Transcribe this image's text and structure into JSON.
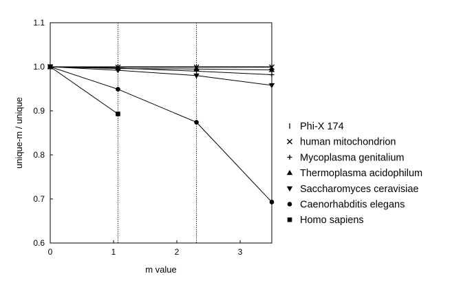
{
  "chart_data": {
    "type": "line",
    "title": "",
    "xlabel": "m value",
    "ylabel": "unique-m / unique",
    "xlim": [
      0,
      3.5
    ],
    "ylim": [
      0.6,
      1.1
    ],
    "x_ticks": [
      0,
      1,
      2,
      3
    ],
    "y_ticks": [
      0.6,
      0.7,
      0.8,
      0.9,
      1.0,
      1.1
    ],
    "x_tick_labels": [
      "0",
      "1",
      "2",
      "3"
    ],
    "y_tick_labels": [
      "0.6",
      "0.7",
      "0.8",
      "0.9",
      "1.0",
      "1.1"
    ],
    "vertical_reference_lines": [
      1.07,
      2.31
    ],
    "grid": false,
    "legend_position": "right",
    "series": [
      {
        "name": "Phi-X 174",
        "marker": "I",
        "x": [
          0,
          1.07,
          2.31,
          3.5
        ],
        "y": [
          1.0,
          1.0,
          1.0,
          1.0
        ]
      },
      {
        "name": "human mitochondrion",
        "marker": "X",
        "x": [
          0,
          1.07,
          2.31,
          3.5
        ],
        "y": [
          1.0,
          0.999,
          0.999,
          0.999
        ]
      },
      {
        "name": "Mycoplasma genitalium",
        "marker": "+",
        "x": [
          0,
          1.07,
          2.31,
          3.5
        ],
        "y": [
          1.0,
          0.997,
          0.99,
          0.982
        ]
      },
      {
        "name": "Thermoplasma acidophilum",
        "marker": "triangle-up",
        "x": [
          0,
          1.07,
          2.31,
          3.5
        ],
        "y": [
          1.0,
          0.996,
          0.995,
          0.993
        ]
      },
      {
        "name": "Saccharomyces ceravisiae",
        "marker": "triangle-down",
        "x": [
          0,
          1.07,
          2.31,
          3.5
        ],
        "y": [
          1.0,
          0.992,
          0.98,
          0.958
        ]
      },
      {
        "name": "Caenorhabditis elegans",
        "marker": "circle",
        "x": [
          0,
          1.07,
          2.31,
          3.5
        ],
        "y": [
          1.0,
          0.949,
          0.874,
          0.693
        ]
      },
      {
        "name": "Homo sapiens",
        "marker": "square",
        "x": [
          0,
          1.07
        ],
        "y": [
          1.0,
          0.893
        ]
      }
    ]
  }
}
